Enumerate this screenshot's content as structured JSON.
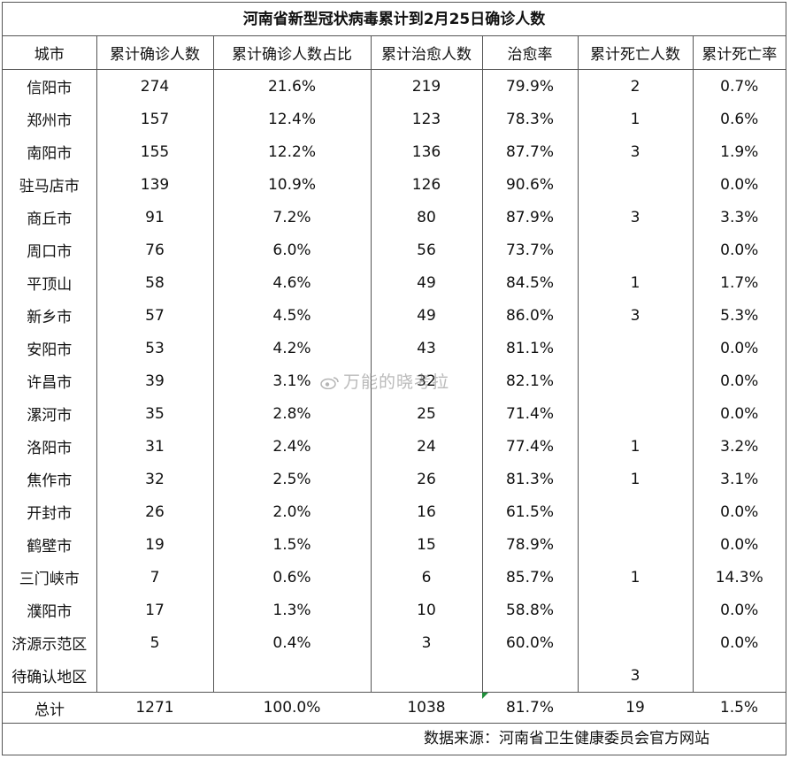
{
  "title": "河南省新型冠状病毒累计到2月25日确诊人数",
  "headers": [
    "城市",
    "累计确诊人数",
    "累计确诊人数占比",
    "累计治愈人数",
    "治愈率",
    "累计死亡人数",
    "累计死亡率"
  ],
  "rows": [
    [
      "信阳市",
      "274",
      "21.6%",
      "219",
      "79.9%",
      "2",
      "0.7%"
    ],
    [
      "郑州市",
      "157",
      "12.4%",
      "123",
      "78.3%",
      "1",
      "0.6%"
    ],
    [
      "南阳市",
      "155",
      "12.2%",
      "136",
      "87.7%",
      "3",
      "1.9%"
    ],
    [
      "驻马店市",
      "139",
      "10.9%",
      "126",
      "90.6%",
      "",
      "0.0%"
    ],
    [
      "商丘市",
      "91",
      "7.2%",
      "80",
      "87.9%",
      "3",
      "3.3%"
    ],
    [
      "周口市",
      "76",
      "6.0%",
      "56",
      "73.7%",
      "",
      "0.0%"
    ],
    [
      "平顶山",
      "58",
      "4.6%",
      "49",
      "84.5%",
      "1",
      "1.7%"
    ],
    [
      "新乡市",
      "57",
      "4.5%",
      "49",
      "86.0%",
      "3",
      "5.3%"
    ],
    [
      "安阳市",
      "53",
      "4.2%",
      "43",
      "81.1%",
      "",
      "0.0%"
    ],
    [
      "许昌市",
      "39",
      "3.1%",
      "32",
      "82.1%",
      "",
      "0.0%"
    ],
    [
      "漯河市",
      "35",
      "2.8%",
      "25",
      "71.4%",
      "",
      "0.0%"
    ],
    [
      "洛阳市",
      "31",
      "2.4%",
      "24",
      "77.4%",
      "1",
      "3.2%"
    ],
    [
      "焦作市",
      "32",
      "2.5%",
      "26",
      "81.3%",
      "1",
      "3.1%"
    ],
    [
      "开封市",
      "26",
      "2.0%",
      "16",
      "61.5%",
      "",
      "0.0%"
    ],
    [
      "鹤壁市",
      "19",
      "1.5%",
      "15",
      "78.9%",
      "",
      "0.0%"
    ],
    [
      "三门峡市",
      "7",
      "0.6%",
      "6",
      "85.7%",
      "1",
      "14.3%"
    ],
    [
      "濮阳市",
      "17",
      "1.3%",
      "10",
      "58.8%",
      "",
      "0.0%"
    ],
    [
      "济源示范区",
      "5",
      "0.4%",
      "3",
      "60.0%",
      "",
      "0.0%"
    ],
    [
      "待确认地区",
      "",
      "",
      "",
      "",
      "3",
      ""
    ]
  ],
  "total": [
    "总计",
    "1271",
    "100.0%",
    "1038",
    "81.7%",
    "19",
    "1.5%"
  ],
  "source": "数据来源：河南省卫生健康委员会官方网站",
  "watermark": "万能的晓考拉",
  "colors": {
    "border": "#555555",
    "marker": "#1f8f3a"
  }
}
